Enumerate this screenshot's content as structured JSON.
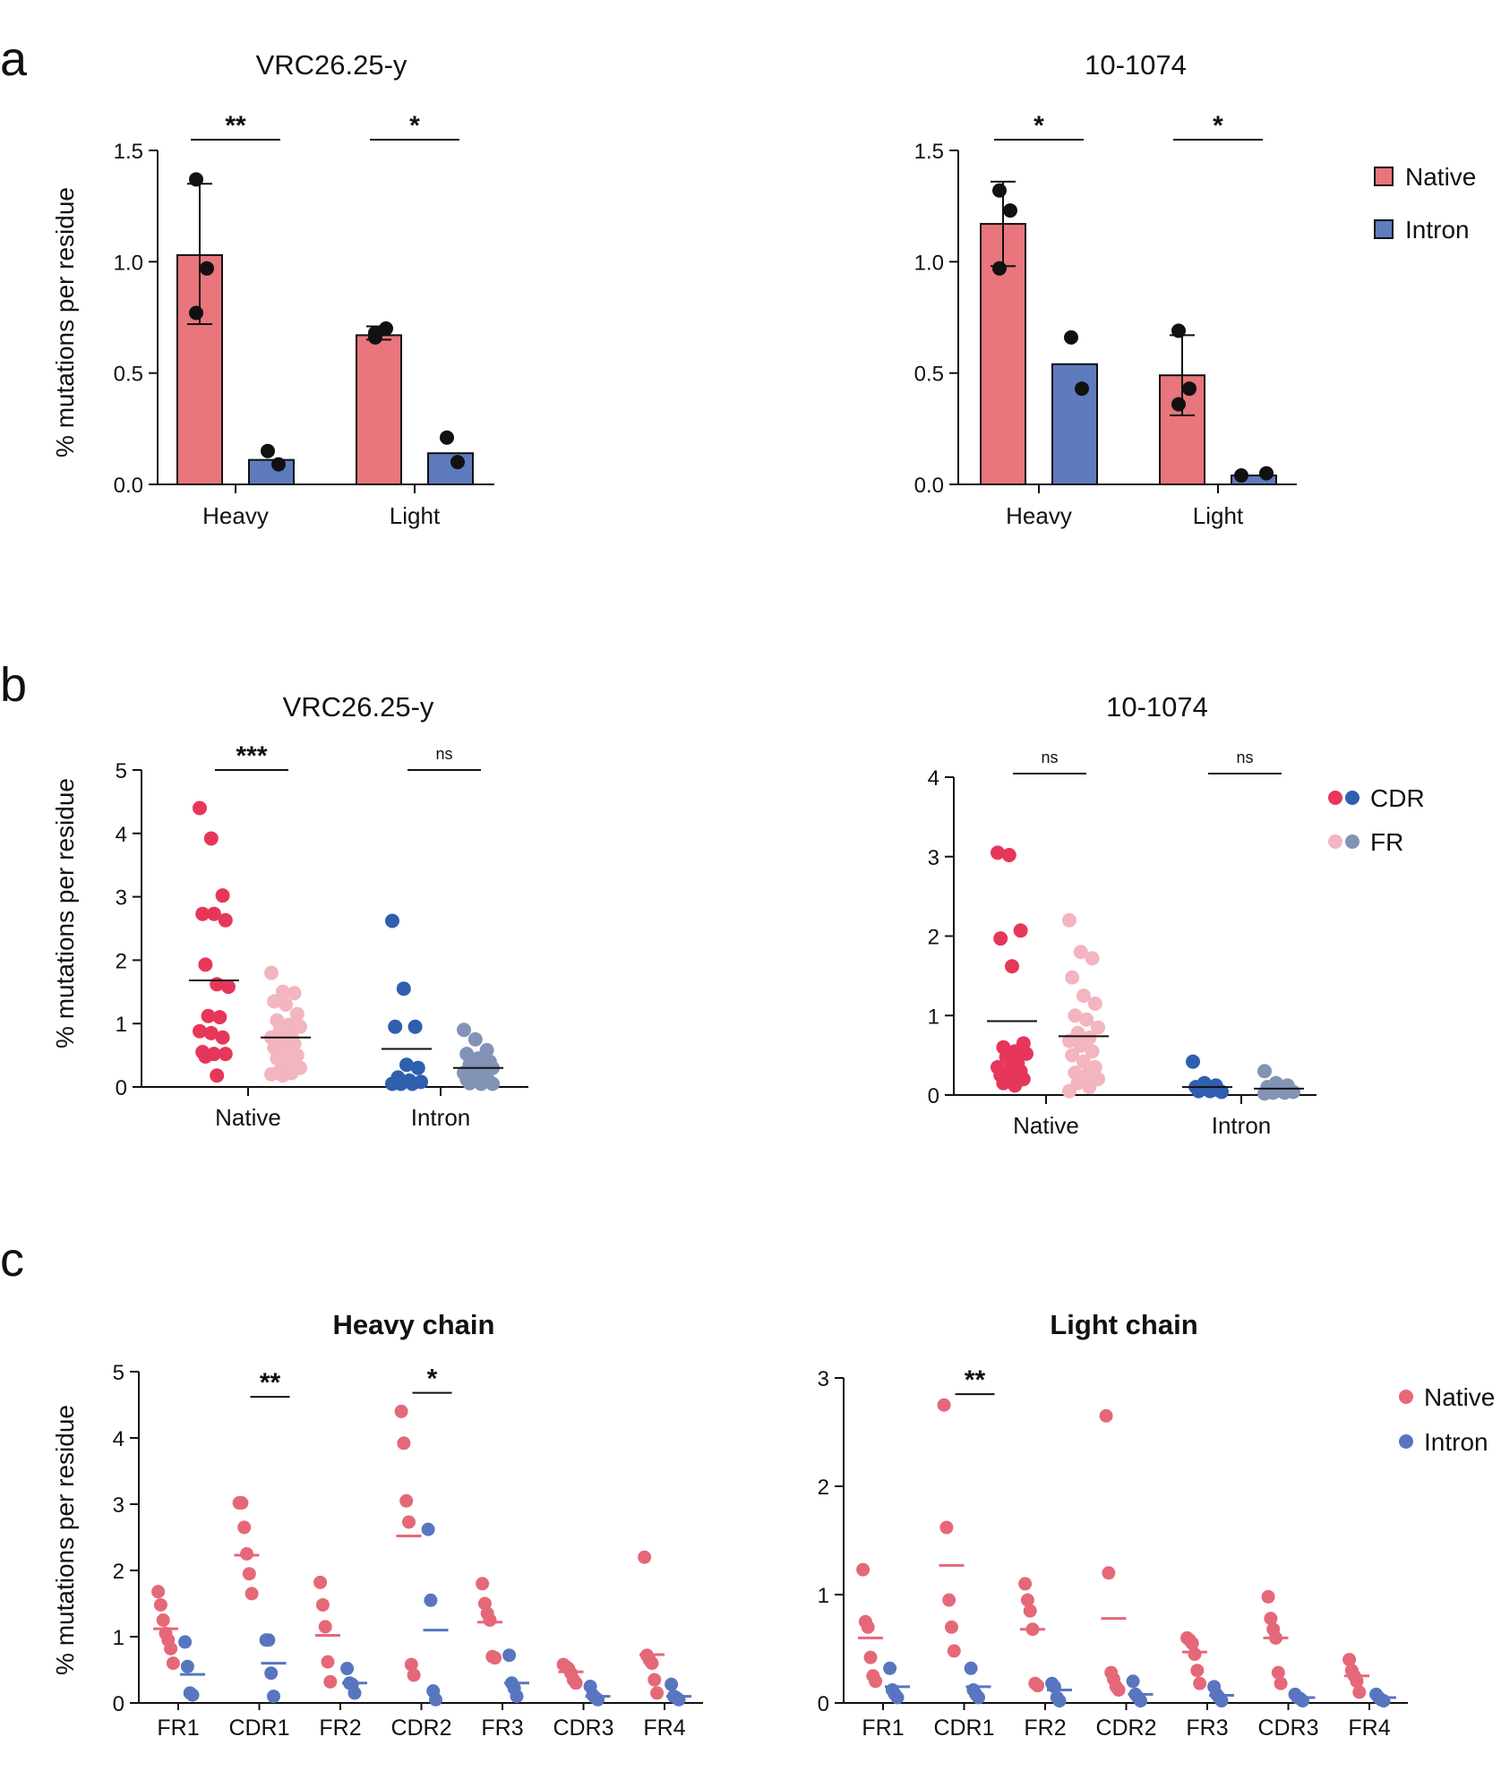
{
  "colors": {
    "native_bar": "#e8767c",
    "intron_bar": "#5e7bbe",
    "native_cdr": "#e6375a",
    "native_fr": "#f3b5bf",
    "intron_cdr": "#2f5fae",
    "intron_fr": "#8393b6",
    "native_point": "#e56878",
    "intron_point": "#5876bf",
    "axis": "#111111"
  },
  "panels": {
    "a": {
      "label": "a"
    },
    "b": {
      "label": "b"
    },
    "c": {
      "label": "c"
    }
  },
  "legend_a": [
    {
      "label": "Native",
      "color": "#e8767c"
    },
    {
      "label": "Intron",
      "color": "#5e7bbe"
    }
  ],
  "legend_b": [
    {
      "label": "CDR",
      "colors": [
        "#e6375a",
        "#2f5fae"
      ]
    },
    {
      "label": "FR",
      "colors": [
        "#f3b5bf",
        "#8393b6"
      ]
    }
  ],
  "legend_c": [
    {
      "label": "Native",
      "color": "#e56878"
    },
    {
      "label": "Intron",
      "color": "#5876bf"
    }
  ],
  "chart_data": [
    {
      "id": "a1",
      "panel": "a",
      "type": "bar",
      "title": "VRC26.25-y",
      "ylabel": "% mutations per residue",
      "ylim": [
        0,
        1.5
      ],
      "yticks": [
        "0.0",
        "0.5",
        "1.0",
        "1.5"
      ],
      "yticks_values": [
        0,
        0.5,
        1.0,
        1.5
      ],
      "categories": [
        "Heavy",
        "Light"
      ],
      "series": [
        {
          "name": "Native",
          "values": [
            1.03,
            0.67
          ],
          "error": [
            [
              0.72,
              1.35
            ],
            [
              0.65,
              0.71
            ]
          ],
          "points": [
            [
              1.37,
              0.97,
              0.77
            ],
            [
              0.66,
              0.7,
              0.68
            ]
          ]
        },
        {
          "name": "Intron",
          "values": [
            0.11,
            0.14
          ],
          "error": null,
          "points": [
            [
              0.15,
              0.09
            ],
            [
              0.21,
              0.1
            ]
          ]
        }
      ],
      "significance": [
        "**",
        "*"
      ]
    },
    {
      "id": "a2",
      "panel": "a",
      "type": "bar",
      "title": "10-1074",
      "ylabel": "",
      "ylim": [
        0,
        1.5
      ],
      "yticks": [
        "0.0",
        "0.5",
        "1.0",
        "1.5"
      ],
      "yticks_values": [
        0,
        0.5,
        1.0,
        1.5
      ],
      "categories": [
        "Heavy",
        "Light"
      ],
      "series": [
        {
          "name": "Native",
          "values": [
            1.17,
            0.49
          ],
          "error": [
            [
              0.98,
              1.36
            ],
            [
              0.31,
              0.67
            ]
          ],
          "points": [
            [
              1.32,
              1.23,
              0.97
            ],
            [
              0.69,
              0.43,
              0.36
            ]
          ]
        },
        {
          "name": "Intron",
          "values": [
            0.54,
            0.04
          ],
          "error": null,
          "points": [
            [
              0.66,
              0.43
            ],
            [
              0.04,
              0.05
            ]
          ]
        }
      ],
      "significance": [
        "*",
        "*"
      ]
    },
    {
      "id": "b1",
      "panel": "b",
      "type": "scatter",
      "title": "VRC26.25-y",
      "ylabel": "% mutations per residue",
      "ylim": [
        0,
        5
      ],
      "yticks": [
        "0",
        "1",
        "2",
        "3",
        "4",
        "5"
      ],
      "yticks_values": [
        0,
        1,
        2,
        3,
        4,
        5
      ],
      "categories": [
        "Native",
        "Intron"
      ],
      "groups": [
        {
          "category": "Native",
          "series": "CDR",
          "median": 1.68,
          "values": [
            4.4,
            3.92,
            3.02,
            2.73,
            2.73,
            2.63,
            1.93,
            1.62,
            1.58,
            1.12,
            1.1,
            0.88,
            0.85,
            0.78,
            0.55,
            0.52,
            0.52,
            0.48,
            0.18
          ]
        },
        {
          "category": "Native",
          "series": "FR",
          "median": 0.78,
          "values": [
            1.8,
            1.5,
            1.48,
            1.35,
            1.3,
            1.15,
            1.05,
            0.98,
            0.95,
            0.88,
            0.8,
            0.78,
            0.72,
            0.68,
            0.62,
            0.55,
            0.5,
            0.45,
            0.38,
            0.3,
            0.25,
            0.22,
            0.2,
            0.18
          ]
        },
        {
          "category": "Intron",
          "series": "CDR",
          "median": 0.6,
          "values": [
            2.62,
            1.55,
            0.95,
            0.95,
            0.35,
            0.3,
            0.15,
            0.1,
            0.08,
            0.05,
            0.05,
            0.05
          ]
        },
        {
          "category": "Intron",
          "series": "FR",
          "median": 0.3,
          "values": [
            0.9,
            0.75,
            0.58,
            0.52,
            0.45,
            0.4,
            0.35,
            0.32,
            0.3,
            0.28,
            0.25,
            0.22,
            0.18,
            0.15,
            0.12,
            0.1,
            0.08,
            0.06,
            0.05,
            0.05
          ]
        }
      ],
      "significance": [
        "***",
        "ns"
      ]
    },
    {
      "id": "b2",
      "panel": "b",
      "type": "scatter",
      "title": "10-1074",
      "ylabel": "",
      "ylim": [
        0,
        4
      ],
      "yticks": [
        "0",
        "1",
        "2",
        "3",
        "4"
      ],
      "yticks_values": [
        0,
        1,
        2,
        3,
        4
      ],
      "categories": [
        "Native",
        "Intron"
      ],
      "groups": [
        {
          "category": "Native",
          "series": "CDR",
          "median": 0.93,
          "values": [
            3.05,
            3.02,
            2.07,
            1.97,
            1.62,
            0.65,
            0.6,
            0.55,
            0.52,
            0.48,
            0.4,
            0.35,
            0.32,
            0.3,
            0.25,
            0.22,
            0.2,
            0.15,
            0.12
          ]
        },
        {
          "category": "Native",
          "series": "FR",
          "median": 0.74,
          "values": [
            2.2,
            1.8,
            1.72,
            1.48,
            1.25,
            1.15,
            1.0,
            0.95,
            0.85,
            0.78,
            0.72,
            0.68,
            0.62,
            0.55,
            0.5,
            0.42,
            0.35,
            0.28,
            0.25,
            0.2,
            0.15,
            0.1,
            0.05
          ]
        },
        {
          "category": "Intron",
          "series": "CDR",
          "median": 0.1,
          "values": [
            0.42,
            0.15,
            0.12,
            0.1,
            0.08,
            0.06,
            0.05,
            0.05,
            0.04
          ]
        },
        {
          "category": "Intron",
          "series": "FR",
          "median": 0.08,
          "values": [
            0.3,
            0.15,
            0.12,
            0.1,
            0.08,
            0.06,
            0.05,
            0.05,
            0.04,
            0.03,
            0.03,
            0.02
          ]
        }
      ],
      "significance": [
        "ns",
        "ns"
      ]
    },
    {
      "id": "c1",
      "panel": "c",
      "type": "scatter",
      "title": "Heavy chain",
      "ylabel": "% mutations per residue",
      "ylim": [
        0,
        5
      ],
      "yticks": [
        "0",
        "1",
        "2",
        "3",
        "4",
        "5"
      ],
      "yticks_values": [
        0,
        1,
        2,
        3,
        4,
        5
      ],
      "categories": [
        "FR1",
        "CDR1",
        "FR2",
        "CDR2",
        "FR3",
        "CDR3",
        "FR4"
      ],
      "series": [
        {
          "name": "Native",
          "points": [
            [
              1.68,
              1.48,
              1.25,
              1.05,
              0.95,
              0.82,
              0.6
            ],
            [
              3.02,
              3.02,
              2.65,
              2.25,
              1.95,
              1.65
            ],
            [
              1.82,
              1.48,
              1.15,
              0.62,
              0.32
            ],
            [
              4.4,
              3.92,
              3.05,
              2.73,
              0.58,
              0.42
            ],
            [
              1.8,
              1.5,
              1.35,
              1.25,
              0.7,
              0.68
            ],
            [
              0.58,
              0.55,
              0.52,
              0.45,
              0.35,
              0.3
            ],
            [
              2.2,
              0.72,
              0.65,
              0.6,
              0.35,
              0.15
            ]
          ],
          "means": [
            1.12,
            2.23,
            1.02,
            2.52,
            1.22,
            0.47,
            0.73
          ]
        },
        {
          "name": "Intron",
          "points": [
            [
              0.92,
              0.55,
              0.15,
              0.12
            ],
            [
              0.95,
              0.95,
              0.45,
              0.1
            ],
            [
              0.52,
              0.3,
              0.28,
              0.15
            ],
            [
              2.62,
              1.55,
              0.18,
              0.05
            ],
            [
              0.72,
              0.3,
              0.22,
              0.1
            ],
            [
              0.25,
              0.12,
              0.08,
              0.05
            ],
            [
              0.28,
              0.1,
              0.08,
              0.05
            ]
          ],
          "means": [
            0.43,
            0.6,
            0.3,
            1.1,
            0.3,
            0.1,
            0.1
          ]
        }
      ],
      "significance": [
        {
          "category": "CDR1",
          "label": "**"
        },
        {
          "category": "CDR2",
          "label": "*"
        }
      ]
    },
    {
      "id": "c2",
      "panel": "c",
      "type": "scatter",
      "title": "Light chain",
      "ylabel": "",
      "ylim": [
        0,
        3
      ],
      "yticks": [
        "0",
        "1",
        "2",
        "3"
      ],
      "yticks_values": [
        0,
        1,
        2,
        3
      ],
      "categories": [
        "FR1",
        "CDR1",
        "FR2",
        "CDR2",
        "FR3",
        "CDR3",
        "FR4"
      ],
      "series": [
        {
          "name": "Native",
          "points": [
            [
              1.23,
              0.75,
              0.7,
              0.42,
              0.25,
              0.2
            ],
            [
              2.75,
              1.62,
              0.95,
              0.7,
              0.48
            ],
            [
              1.1,
              0.95,
              0.85,
              0.68,
              0.18,
              0.16
            ],
            [
              2.65,
              1.2,
              0.28,
              0.22,
              0.15,
              0.12
            ],
            [
              0.6,
              0.58,
              0.55,
              0.45,
              0.3,
              0.18
            ],
            [
              0.98,
              0.78,
              0.68,
              0.6,
              0.28,
              0.18
            ],
            [
              0.4,
              0.3,
              0.25,
              0.2,
              0.1
            ]
          ],
          "means": [
            0.6,
            1.27,
            0.68,
            0.78,
            0.47,
            0.6,
            0.25
          ]
        },
        {
          "name": "Intron",
          "points": [
            [
              0.32,
              0.12,
              0.08,
              0.05
            ],
            [
              0.32,
              0.12,
              0.08,
              0.05
            ],
            [
              0.18,
              0.15,
              0.05,
              0.02
            ],
            [
              0.2,
              0.08,
              0.05,
              0.02
            ],
            [
              0.15,
              0.08,
              0.05,
              0.02
            ],
            [
              0.08,
              0.05,
              0.04,
              0.02
            ],
            [
              0.08,
              0.05,
              0.03,
              0.02
            ]
          ],
          "means": [
            0.15,
            0.15,
            0.12,
            0.08,
            0.07,
            0.05,
            0.05
          ]
        }
      ],
      "significance": [
        {
          "category": "CDR1",
          "label": "**"
        }
      ]
    }
  ]
}
